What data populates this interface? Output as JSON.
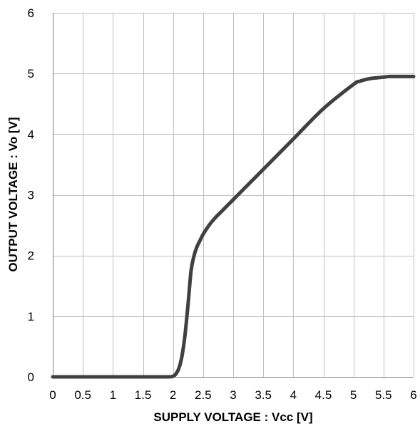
{
  "chart_data": {
    "type": "line",
    "title": "",
    "xlabel": "SUPPLY VOLTAGE : Vcc [V]",
    "ylabel": "OUTPUT VOLTAGE : Vo [V]",
    "xlim": [
      0,
      6
    ],
    "ylim": [
      0,
      6
    ],
    "x_ticks": [
      0,
      0.5,
      1,
      1.5,
      2,
      2.5,
      3,
      3.5,
      4,
      4.5,
      5,
      5.5,
      6
    ],
    "x_tick_labels": [
      "0",
      "0.5",
      "1",
      "1.5",
      "2",
      "2.5",
      "3",
      "3.5",
      "4",
      "4.5",
      "5",
      "5.5",
      "6"
    ],
    "y_ticks": [
      0,
      1,
      2,
      3,
      4,
      5,
      6
    ],
    "y_tick_labels": [
      "0",
      "1",
      "2",
      "3",
      "4",
      "5",
      "6"
    ],
    "grid": true,
    "legend": "none",
    "series": [
      {
        "color": "#404040",
        "x": [
          0,
          0.5,
          1,
          1.5,
          1.9,
          2.0,
          2.05,
          2.1,
          2.15,
          2.2,
          2.25,
          2.3,
          2.35,
          2.4,
          2.45,
          2.5,
          2.6,
          2.7,
          2.8,
          3.0,
          3.2,
          3.5,
          4.0,
          4.5,
          5.0,
          5.1,
          5.2,
          5.3,
          5.4,
          5.5,
          5.6,
          5.8,
          6.0
        ],
        "y": [
          0,
          0,
          0,
          0,
          0,
          0.01,
          0.05,
          0.15,
          0.35,
          0.7,
          1.2,
          1.75,
          2.0,
          2.15,
          2.25,
          2.35,
          2.5,
          2.62,
          2.72,
          2.92,
          3.12,
          3.42,
          3.92,
          4.42,
          4.82,
          4.87,
          4.9,
          4.92,
          4.93,
          4.94,
          4.95,
          4.95,
          4.95
        ]
      }
    ]
  }
}
